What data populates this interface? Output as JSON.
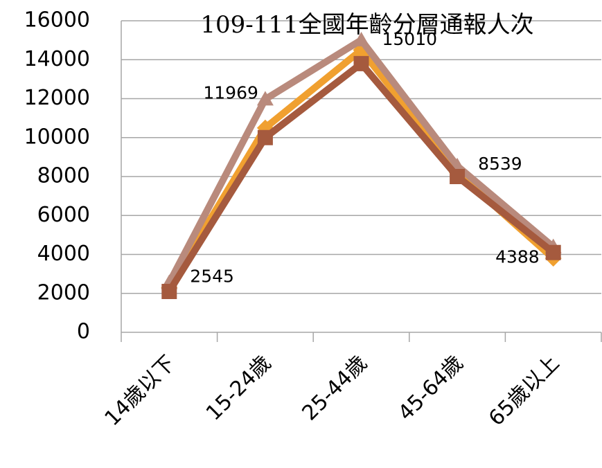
{
  "chart_data": {
    "type": "line",
    "title": "109-111全國年齡分層通報人次",
    "categories": [
      "14歲以下",
      "15-24歲",
      "25-44歲",
      "45-64歲",
      "65歲以上"
    ],
    "series": [
      {
        "color": "#f0a030",
        "marker": "diamond",
        "values": [
          2300,
          10500,
          14500,
          8200,
          3800
        ]
      },
      {
        "color": "#b98a7c",
        "marker": "triangle",
        "values": [
          2545,
          11969,
          15010,
          8539,
          4388
        ],
        "data_labels": true
      },
      {
        "color": "#a55a3e",
        "marker": "square",
        "values": [
          2100,
          10000,
          13800,
          8000,
          4100
        ]
      }
    ],
    "ylim": [
      0,
      16000
    ],
    "yticks": [
      0,
      2000,
      4000,
      6000,
      8000,
      10000,
      12000,
      14000,
      16000
    ],
    "grid": true
  }
}
